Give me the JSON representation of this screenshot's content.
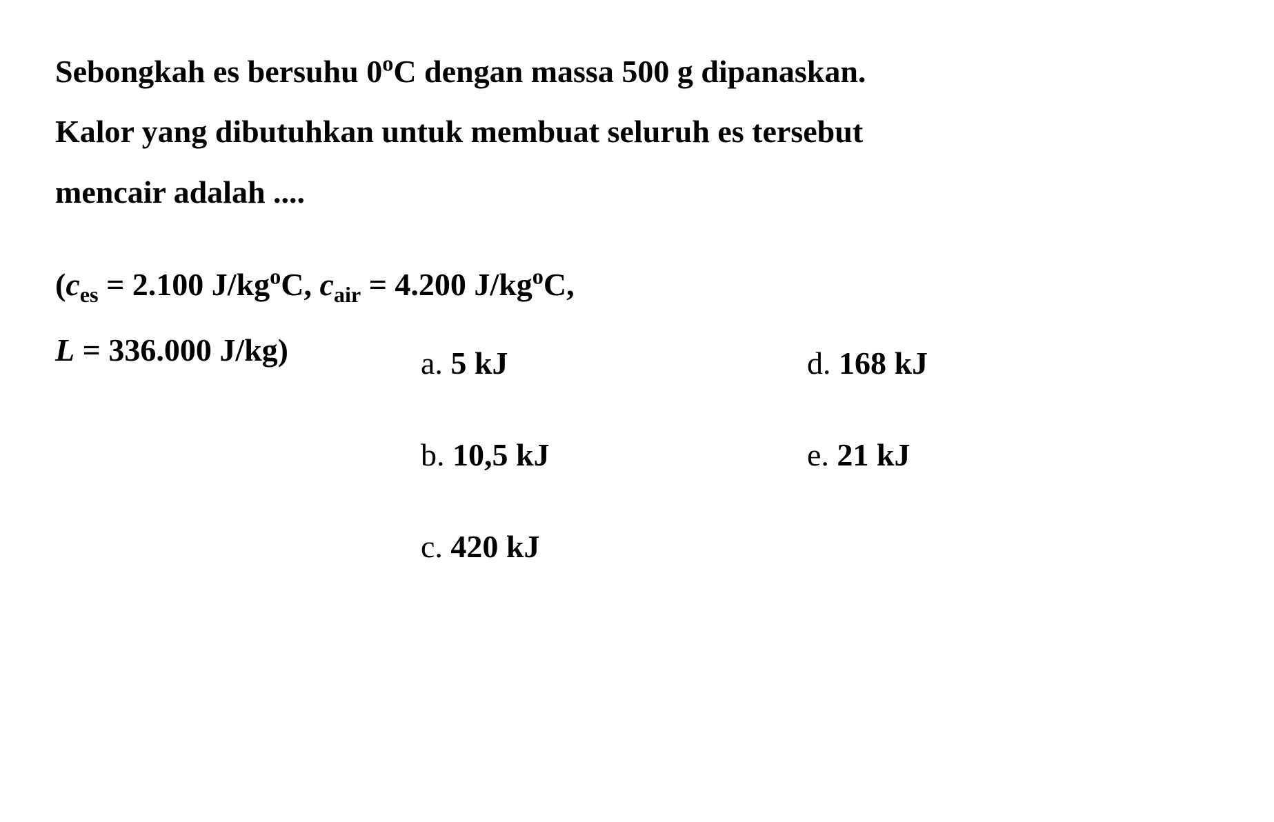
{
  "question": {
    "line1": "Sebongkah es bersuhu 0°C dengan massa 500 g dipanaskan.",
    "line2": "Kalor yang dibutuhkan untuk membuat seluruh es tersebut",
    "line3": "mencair adalah ...."
  },
  "given": {
    "line1_prefix": "(",
    "c_es_var": "c",
    "c_es_sub": "es",
    "c_es_val": " = 2.100 J/kg°C, ",
    "c_air_var": "c",
    "c_air_sub": "air",
    "c_air_val": " = 4.200 J/kg°C,",
    "line2_var": "L",
    "line2_val": " = 336.000 J/kg)"
  },
  "options": {
    "a": {
      "label": "a. ",
      "value": "5 kJ"
    },
    "b": {
      "label": "b. ",
      "value": "10,5 kJ"
    },
    "c": {
      "label": "c. ",
      "value": "420 kJ"
    },
    "d": {
      "label": "d. ",
      "value": "168 kJ"
    },
    "e": {
      "label": "e. ",
      "value": "21 kJ"
    }
  },
  "colors": {
    "text": "#000000",
    "background": "#ffffff"
  },
  "typography": {
    "question_fontsize": 46,
    "option_fontsize": 46,
    "font_family": "Times New Roman",
    "font_weight_question": "bold",
    "font_weight_option_label": "normal",
    "font_weight_option_value": "bold"
  }
}
